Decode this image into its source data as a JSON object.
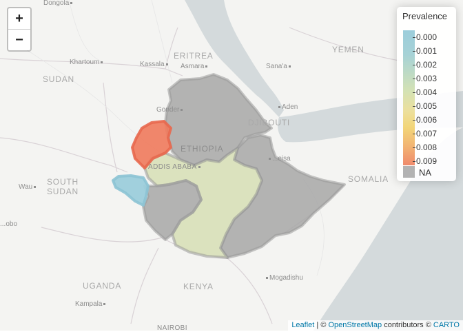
{
  "map": {
    "zoom_in_label": "+",
    "zoom_out_label": "−",
    "country_labels": {
      "eritrea": "ERITREA",
      "yemen": "YEMEN",
      "sudan": "SUDAN",
      "djibouti": "DJIBOUTI",
      "ethiopia": "ETHIOPIA",
      "south_sudan_1": "SOUTH",
      "south_sudan_2": "SUDAN",
      "somalia": "SOMALIA",
      "uganda": "UGANDA",
      "kenya": "KENYA"
    },
    "city_labels": {
      "dongola": "Dongola",
      "khartoum": "Khartoum",
      "kassala": "Kassala",
      "asmara": "Asmara",
      "sanaa": "Sana'a",
      "gonder": "Gonder",
      "aden": "Aden",
      "addis_ababa": "ADDIS ABABA",
      "hargeisa": "...eisa",
      "wau": "Wau",
      "juba": "...obo",
      "mogadishu": "Mogadishu",
      "kampala": "Kampala",
      "nairobi": "NAIROBI"
    },
    "colors": {
      "land": "#f4f4f2",
      "water": "#d4dadc",
      "na_fill": "#b3b3b3",
      "low_fill": "#9ccddb",
      "mid_fill": "#d8e0b8",
      "high_fill": "#ef8a6c",
      "region_stroke": "#999999"
    }
  },
  "legend": {
    "title": "Prevalence",
    "ticks": [
      "0.000",
      "0.001",
      "0.002",
      "0.003",
      "0.004",
      "0.005",
      "0.006",
      "0.007",
      "0.008",
      "0.009"
    ],
    "na_label": "NA"
  },
  "attribution": {
    "leaflet": "Leaflet",
    "sep1": " | © ",
    "osm": "OpenStreetMap",
    "sep2": " contributors © ",
    "carto": "CARTO"
  }
}
